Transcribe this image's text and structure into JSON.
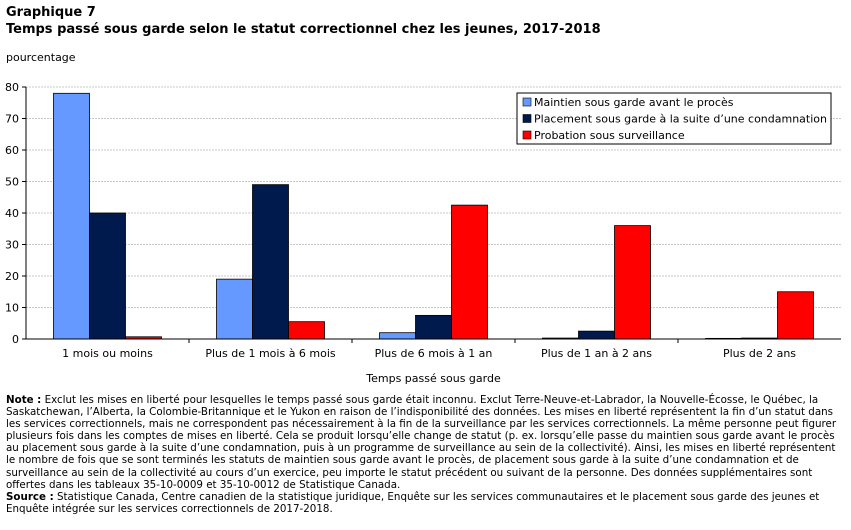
{
  "header": {
    "label": "Graphique  7",
    "title": "Temps passé sous garde selon le statut correctionnel chez les jeunes, 2017-2018"
  },
  "chart_data": {
    "type": "bar",
    "title": "Temps passé sous garde selon le statut correctionnel chez les jeunes, 2017-2018",
    "ylabel": "pourcentage",
    "xlabel": "Temps passé sous garde",
    "ylim": [
      0,
      80
    ],
    "yticks": [
      "0",
      "10",
      "20",
      "30",
      "40",
      "50",
      "60",
      "70",
      "80"
    ],
    "grid": true,
    "legend_position": "top-right",
    "categories": [
      "1 mois ou moins",
      "Plus de 1 mois à 6 mois",
      "Plus de 6 mois à 1 an",
      "Plus de 1 an à 2 ans",
      "Plus de 2 ans"
    ],
    "series": [
      {
        "name": "Maintien sous garde avant le procès",
        "color": "#6699ff",
        "values": [
          78,
          19,
          2,
          0.3,
          0.2
        ]
      },
      {
        "name": "Placement sous garde à la suite d’une condamnation",
        "color": "#001a4d",
        "values": [
          40,
          49,
          7.5,
          2.5,
          0.3
        ]
      },
      {
        "name": "Probation sous surveillance",
        "color": "#ff0000",
        "values": [
          0.7,
          5.5,
          42.5,
          36,
          15
        ]
      }
    ]
  },
  "notes": {
    "note_label": "Note :",
    "note_text": " Exclut les mises en liberté pour lesquelles le temps passé sous garde était inconnu. Exclut Terre-Neuve-et-Labrador, la Nouvelle-Écosse, le Québec, la Saskatchewan, l’Alberta, la Colombie-Britannique et le Yukon en raison de l’indisponibilité des données. Les mises en liberté représentent la fin d’un statut dans les services correctionnels, mais ne correspondent pas nécessairement à la fin de la surveillance par les services correctionnels. La même personne peut figurer plusieurs fois dans les comptes de mises en liberté. Cela se produit lorsqu’elle change de statut (p. ex. lorsqu’elle passe du maintien sous garde avant le procès au placement sous garde à la suite d’une condamnation, puis à un programme de surveillance au sein de la collectivité). Ainsi, les mises en liberté représentent le nombre de fois que se sont terminés les statuts de maintien sous garde avant le procès, de placement sous garde à la suite d’une condamnation et de surveillance au sein de la collectivité au cours d’un exercice, peu importe le statut précédent ou suivant de la personne. Des données supplémentaires sont offertes dans les tableaux 35-10-0009 et 35-10-0012 de Statistique Canada.",
    "source_label": "Source :",
    "source_text": " Statistique Canada, Centre canadien de la statistique juridique, Enquête sur les services communautaires et le placement sous garde des jeunes et Enquête intégrée sur les services correctionnels de 2017-2018."
  }
}
